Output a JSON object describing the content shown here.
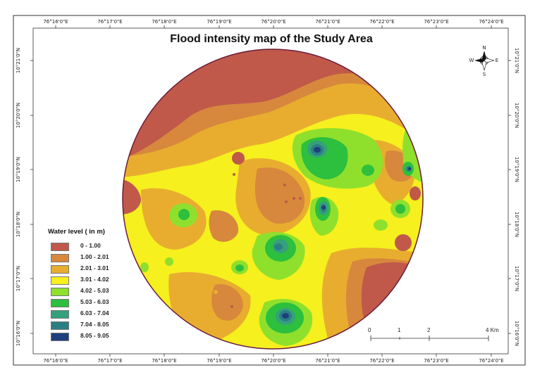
{
  "map": {
    "title": "Flood intensity map of the Study Area",
    "longitude_ticks": [
      "76°16'0\"E",
      "76°17'0\"E",
      "76°18'0\"E",
      "76°19'0\"E",
      "76°20'0\"E",
      "76°21'0\"E",
      "76°22'0\"E",
      "76°23'0\"E",
      "76°24'0\"E"
    ],
    "latitude_ticks": [
      "10°21'0\"N",
      "10°20'0\"N",
      "10°19'0\"N",
      "10°18'0\"N",
      "10°17'0\"N",
      "10°16'0\"N"
    ],
    "north_arrow": {
      "labels": [
        "N",
        "E",
        "S",
        "W"
      ],
      "icon": "compass-rose-icon"
    },
    "legend": {
      "title": "Water level ( in m)",
      "items": [
        {
          "label": "0 - 1.00",
          "color": "#c0594a"
        },
        {
          "label": "1.00 - 2.01",
          "color": "#d7883c"
        },
        {
          "label": "2.01 - 3.01",
          "color": "#e8ad2f"
        },
        {
          "label": "3.01 - 4.02",
          "color": "#f5f01e"
        },
        {
          "label": "4.02 - 5.03",
          "color": "#8fe02c"
        },
        {
          "label": "5.03 - 6.03",
          "color": "#2dbf3e"
        },
        {
          "label": "6.03 - 7.04",
          "color": "#36a07c"
        },
        {
          "label": "7.04 - 8.05",
          "color": "#2a7f84"
        },
        {
          "label": "8.05 - 9.05",
          "color": "#1f3f7f"
        }
      ]
    },
    "scale_bar": {
      "labels": [
        "0",
        "1",
        "2",
        "4 Km"
      ]
    }
  }
}
